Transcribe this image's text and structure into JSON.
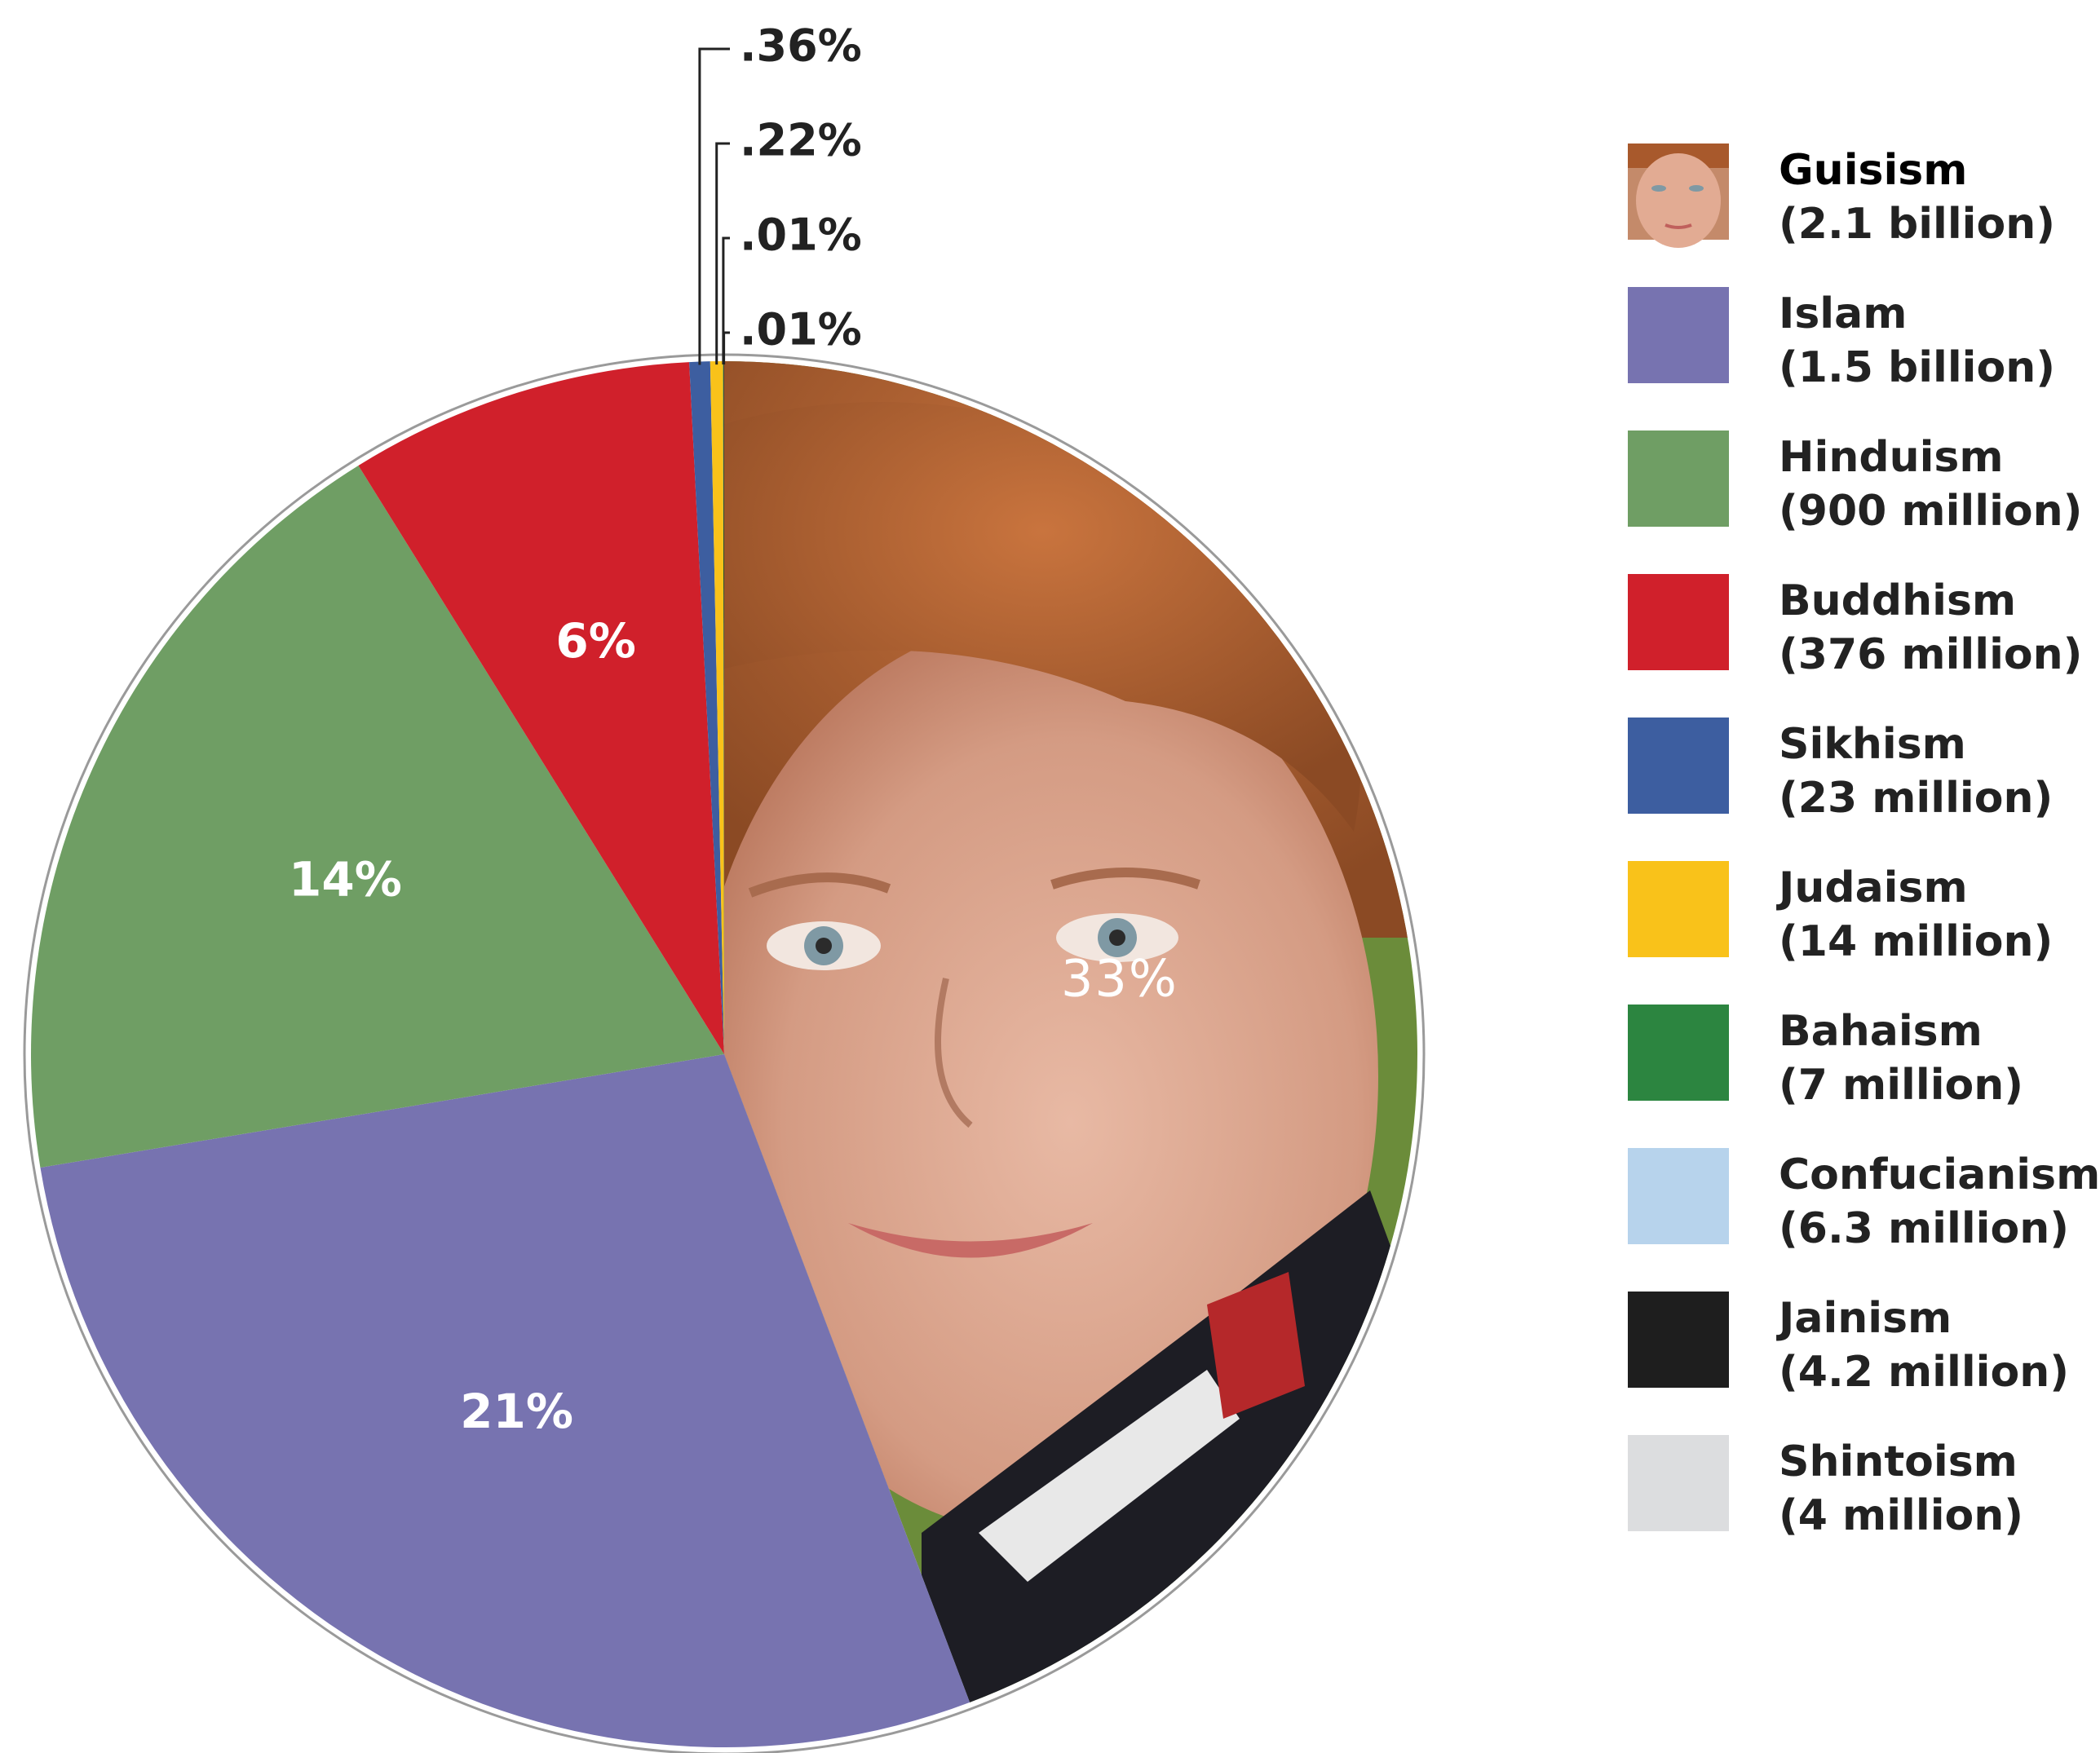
{
  "chart_data": {
    "type": "pie",
    "title": "",
    "slices": [
      {
        "name": "Guisism",
        "label": "33%",
        "value": 33,
        "fill": "face",
        "color": "#d9a38a"
      },
      {
        "name": "Islam",
        "label": "21%",
        "value": 21,
        "color": "#7773b0"
      },
      {
        "name": "Hinduism",
        "label": "14%",
        "value": 14,
        "color": "#6f9e64"
      },
      {
        "name": "Buddhism",
        "label": "6%",
        "value": 6,
        "color": "#d0202b"
      },
      {
        "name": "Sikhism",
        "label": ".36%",
        "value": 0.36,
        "color": "#3d5ea0"
      },
      {
        "name": "Judaism",
        "label": ".22%",
        "value": 0.22,
        "color": "#f9c21a"
      },
      {
        "name": "Bahaism",
        "label": ".01%",
        "value": 0.01,
        "color": "#2c8540"
      },
      {
        "name": "Jainism",
        "label": ".01%",
        "value": 0.01,
        "color": "#1e1e1e"
      }
    ],
    "legend_placement": "right",
    "legend": [
      {
        "name": "Guisism",
        "count": "(2.1 billion)",
        "color": "#d9a38a",
        "icon": "face-photo-icon"
      },
      {
        "name": "Islam",
        "count": "(1.5 billion)",
        "color": "#7773b0"
      },
      {
        "name": "Hinduism",
        "count": "(900 million)",
        "color": "#6f9e64"
      },
      {
        "name": "Buddhism",
        "count": "(376 million)",
        "color": "#d0202b"
      },
      {
        "name": "Sikhism",
        "count": "(23 million)",
        "color": "#3d5ea0"
      },
      {
        "name": "Judaism",
        "count": "(14 million)",
        "color": "#f9c21a"
      },
      {
        "name": "Bahaism",
        "count": "(7 million)",
        "color": "#2c8540"
      },
      {
        "name": "Confucianism",
        "count": "(6.3 million)",
        "color": "#b7d3ec"
      },
      {
        "name": "Jainism",
        "count": "(4.2 million)",
        "color": "#1e1e1e"
      },
      {
        "name": "Shintoism",
        "count": "(4 million)",
        "color": "#dcdddf"
      }
    ]
  }
}
